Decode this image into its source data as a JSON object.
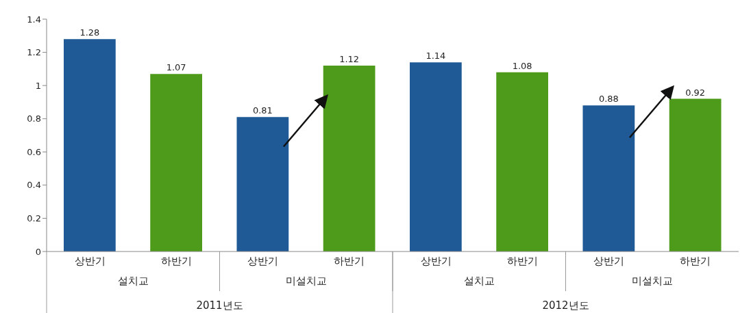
{
  "chart_data": {
    "type": "bar",
    "categories": [
      "상반기",
      "하반기",
      "상반기",
      "하반기",
      "상반기",
      "하반기",
      "상반기",
      "하반기"
    ],
    "values": [
      1.28,
      1.07,
      0.81,
      1.12,
      1.14,
      1.08,
      0.88,
      0.92
    ],
    "colors": [
      "#1f5a96",
      "#4e9a1a",
      "#1f5a96",
      "#4e9a1a",
      "#1f5a96",
      "#4e9a1a",
      "#1f5a96",
      "#4e9a1a"
    ],
    "ylim": [
      0,
      1.4
    ],
    "yticks": [
      0,
      0.2,
      0.4,
      0.6,
      0.8,
      1,
      1.2,
      1.4
    ],
    "data_labels": true,
    "annotations": [
      "설치교",
      "미설치교",
      "설치교",
      "미설치교",
      "2011년도",
      "2012년도"
    ]
  }
}
